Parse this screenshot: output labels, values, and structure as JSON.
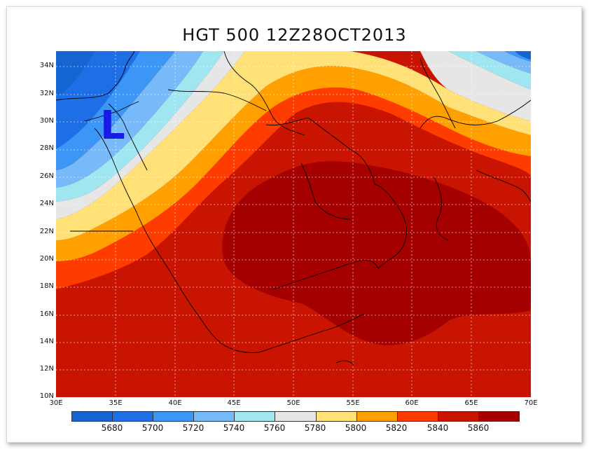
{
  "title": "HGT 500 12Z28OCT2013",
  "low_label": "L",
  "colors": {
    "c5680": "#1464d2",
    "c5700": "#1e6ee6",
    "c5720": "#3c96f5",
    "c5740": "#78b9fa",
    "c5760": "#a0e6f0",
    "c5780": "#e6e6e6",
    "c5800": "#ffe178",
    "c5820": "#ffa000",
    "c5840": "#ff3c00",
    "c5860": "#c81400",
    "c5880": "#a50000",
    "coast": "#000000",
    "low": "#1a1ae6"
  },
  "lat_ticks": [
    "10N",
    "12N",
    "14N",
    "16N",
    "18N",
    "20N",
    "22N",
    "24N",
    "26N",
    "28N",
    "30N",
    "32N",
    "34N"
  ],
  "lon_ticks": [
    "30E",
    "35E",
    "40E",
    "45E",
    "50E",
    "55E",
    "60E",
    "65E",
    "70E"
  ],
  "colorbar": {
    "labels": [
      "5680",
      "5700",
      "5720",
      "5740",
      "5760",
      "5780",
      "5800",
      "5820",
      "5840",
      "5860"
    ],
    "colors": [
      "#1464d2",
      "#1e6ee6",
      "#3c96f5",
      "#78b9fa",
      "#a0e6f0",
      "#e6e6e6",
      "#ffe178",
      "#ffa000",
      "#ff3c00",
      "#c81400",
      "#a50000"
    ]
  }
}
